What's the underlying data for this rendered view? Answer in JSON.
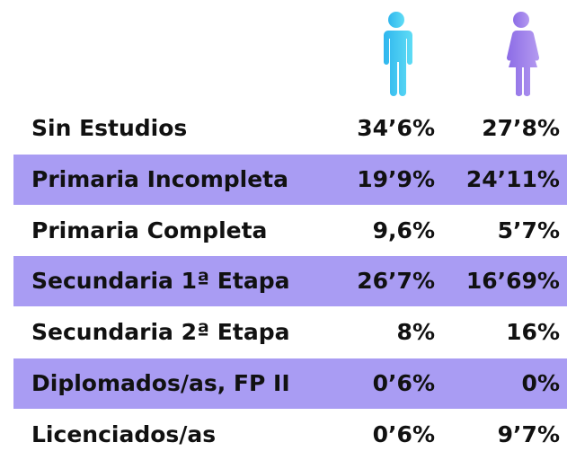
{
  "table": {
    "columns": [
      "Hombres",
      "Mujeres"
    ],
    "rows": [
      [
        "Sin Estudios",
        "34’6%",
        "27’8%"
      ],
      [
        "Primaria Incompleta",
        "19’9%",
        "24’11%"
      ],
      [
        "Primaria Completa",
        "9,6%",
        "5’7%"
      ],
      [
        "Secundaria 1ª Etapa",
        "26’7%",
        "16’69%"
      ],
      [
        "Secundaria 2ª Etapa",
        "8%",
        "16%"
      ],
      [
        "Diplomados/as, FP II",
        "0’6%",
        "0%"
      ],
      [
        "Licenciados/as",
        "0’6%",
        "9’7%"
      ]
    ]
  }
}
